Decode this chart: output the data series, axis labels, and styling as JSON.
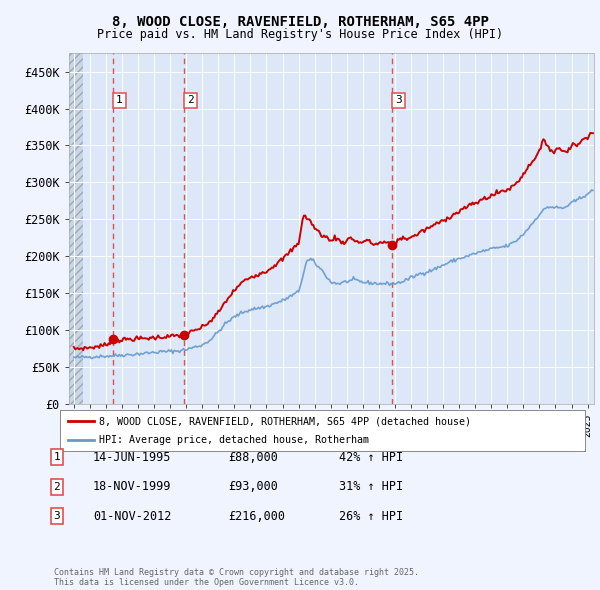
{
  "title_line1": "8, WOOD CLOSE, RAVENFIELD, ROTHERHAM, S65 4PP",
  "title_line2": "Price paid vs. HM Land Registry's House Price Index (HPI)",
  "background_color": "#f0f4ff",
  "plot_background": "#dce8f8",
  "ylim": [
    0,
    475000
  ],
  "yticks": [
    0,
    50000,
    100000,
    150000,
    200000,
    250000,
    300000,
    350000,
    400000,
    450000
  ],
  "ytick_labels": [
    "£0",
    "£50K",
    "£100K",
    "£150K",
    "£200K",
    "£250K",
    "£300K",
    "£350K",
    "£400K",
    "£450K"
  ],
  "xlim_start": 1992.7,
  "xlim_end": 2025.4,
  "transactions": [
    {
      "date": 1995.45,
      "price": 88000,
      "label": "1"
    },
    {
      "date": 1999.88,
      "price": 93000,
      "label": "2"
    },
    {
      "date": 2012.83,
      "price": 216000,
      "label": "3"
    }
  ],
  "transaction_details": [
    {
      "label": "1",
      "date_str": "14-JUN-1995",
      "price_str": "£88,000",
      "hpi_str": "42% ↑ HPI"
    },
    {
      "label": "2",
      "date_str": "18-NOV-1999",
      "price_str": "£93,000",
      "hpi_str": "31% ↑ HPI"
    },
    {
      "label": "3",
      "date_str": "01-NOV-2012",
      "price_str": "£216,000",
      "hpi_str": "26% ↑ HPI"
    }
  ],
  "legend_line1": "8, WOOD CLOSE, RAVENFIELD, ROTHERHAM, S65 4PP (detached house)",
  "legend_line2": "HPI: Average price, detached house, Rotherham",
  "footer": "Contains HM Land Registry data © Crown copyright and database right 2025.\nThis data is licensed under the Open Government Licence v3.0.",
  "red_line_color": "#cc0000",
  "blue_line_color": "#6699cc",
  "marker_color": "#cc0000",
  "dashed_line_color": "#e05050"
}
